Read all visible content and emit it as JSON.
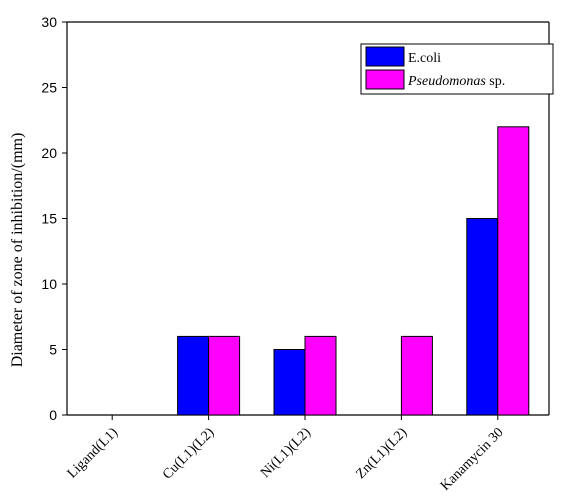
{
  "chart_data": {
    "type": "bar",
    "categories": [
      "Ligand(L1)",
      "Cu(L1)(L2)",
      "Ni(L1)(L2)",
      "Zn(L1)(L2)",
      "Kanamycin 30"
    ],
    "series": [
      {
        "name": "E.coli",
        "values": [
          0,
          6,
          5,
          0,
          15
        ],
        "color": "#0000FF"
      },
      {
        "name": "Pseudomonas sp.",
        "name_italic": "Pseudomonas",
        "name_rest": " sp.",
        "values": [
          0,
          6,
          6,
          6,
          22
        ],
        "color": "#FF00FF"
      }
    ],
    "ylabel": "Diameter of zone of inhibition/(mm)",
    "xlabel": "",
    "ylim": [
      0,
      30
    ],
    "yticks": [
      0,
      5,
      10,
      15,
      20,
      25,
      30
    ],
    "legend_position": "top-right",
    "grid": false
  }
}
